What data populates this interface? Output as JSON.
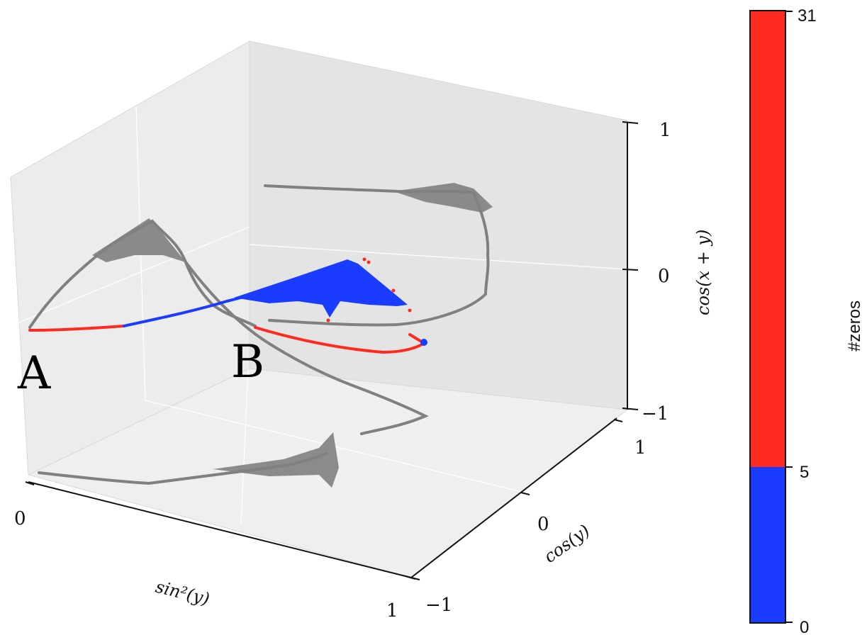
{
  "chart_data": {
    "type": "scatter",
    "projection": "3d",
    "title": "",
    "axes": {
      "x": {
        "label": "sin²(y)",
        "ticks": [
          "0",
          "1"
        ],
        "range": [
          0,
          1
        ]
      },
      "y": {
        "label": "cos(y)",
        "ticks": [
          "−1",
          "0",
          "1"
        ],
        "range": [
          -1,
          1
        ]
      },
      "z": {
        "label": "cos(x + y)",
        "ticks": [
          "−1",
          "0",
          "1"
        ],
        "range": [
          -1,
          1
        ]
      }
    },
    "annotations": [
      {
        "text": "A"
      },
      {
        "text": "B"
      }
    ],
    "colorbar": {
      "label": "#zeros",
      "ticks": [
        "0",
        "5",
        "31"
      ],
      "range": [
        0,
        31
      ],
      "bands": [
        {
          "from": 0,
          "to": 5,
          "color": "#1a3cff"
        },
        {
          "from": 5,
          "to": 31,
          "color": "#ff2a1f"
        }
      ]
    },
    "colors": {
      "projection": "#808080",
      "low": "#1a3cff",
      "high": "#ff2a1f",
      "pane": "#e9e9e9"
    }
  }
}
